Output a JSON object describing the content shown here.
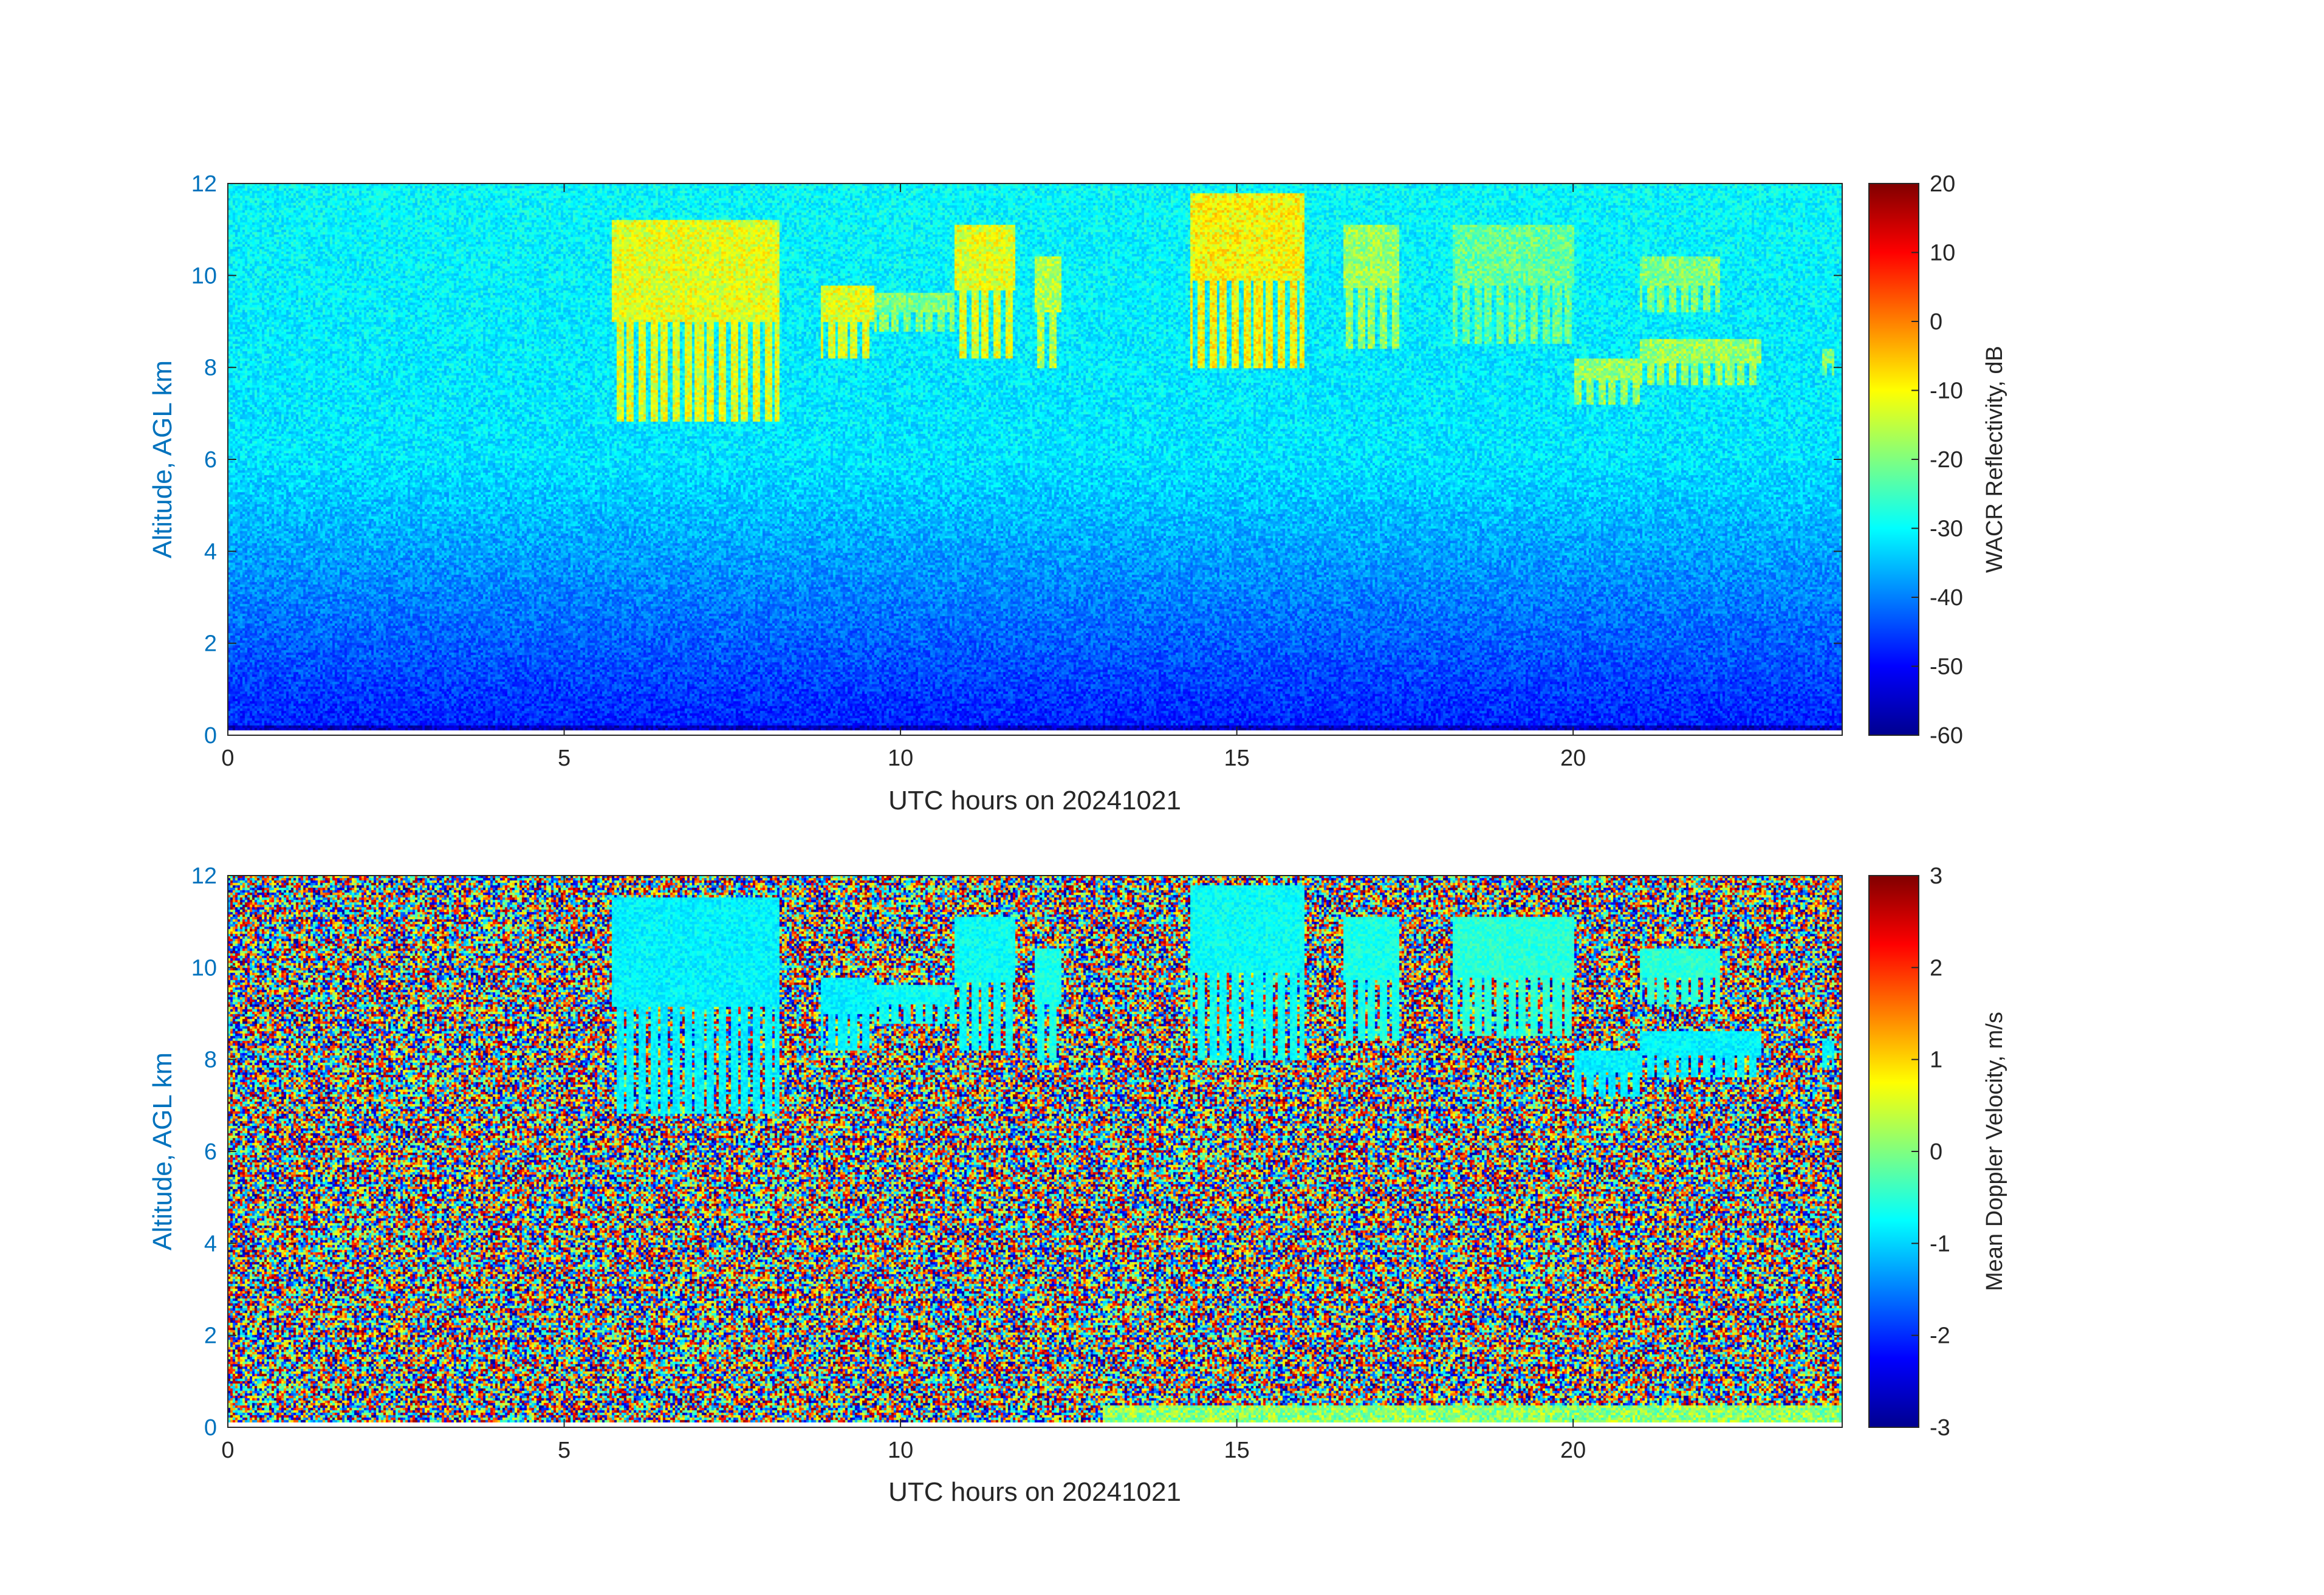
{
  "chart_data": [
    {
      "type": "heatmap",
      "xlabel": "UTC hours on 20241021",
      "ylabel": "Altitude, AGL km",
      "xlim": [
        0,
        24
      ],
      "ylim": [
        0,
        12
      ],
      "xticks": [
        0,
        5,
        10,
        15,
        20
      ],
      "yticks": [
        0,
        2,
        4,
        6,
        8,
        10,
        12
      ],
      "colormap": "jet",
      "colorbar": {
        "label": "WACR Reflectivity, dB",
        "range": [
          -60,
          20
        ],
        "ticks": [
          -60,
          -50,
          -40,
          -30,
          -20,
          -10,
          0,
          10,
          20
        ]
      },
      "clouds": [
        {
          "x0": 5.7,
          "x1": 8.2,
          "y0": 6.8,
          "y1": 11.2,
          "value": -12
        },
        {
          "x0": 8.8,
          "x1": 9.6,
          "y0": 8.2,
          "y1": 9.8,
          "value": -12
        },
        {
          "x0": 9.6,
          "x1": 10.8,
          "y0": 8.8,
          "y1": 9.6,
          "value": -20
        },
        {
          "x0": 10.8,
          "x1": 11.7,
          "y0": 8.2,
          "y1": 11.1,
          "value": -12
        },
        {
          "x0": 12.0,
          "x1": 12.4,
          "y0": 8.0,
          "y1": 10.4,
          "value": -16
        },
        {
          "x0": 14.3,
          "x1": 16.0,
          "y0": 8.0,
          "y1": 11.8,
          "value": -10
        },
        {
          "x0": 16.6,
          "x1": 17.4,
          "y0": 8.4,
          "y1": 11.1,
          "value": -18
        },
        {
          "x0": 18.2,
          "x1": 20.0,
          "y0": 8.5,
          "y1": 11.1,
          "value": -22
        },
        {
          "x0": 20.0,
          "x1": 21.0,
          "y0": 7.2,
          "y1": 8.2,
          "value": -18
        },
        {
          "x0": 21.0,
          "x1": 22.8,
          "y0": 7.6,
          "y1": 8.6,
          "value": -18
        },
        {
          "x0": 21.0,
          "x1": 22.2,
          "y0": 9.2,
          "y1": 10.4,
          "value": -20
        },
        {
          "x0": 23.7,
          "x1": 23.9,
          "y0": 7.8,
          "y1": 8.4,
          "value": -20
        }
      ]
    },
    {
      "type": "heatmap",
      "xlabel": "UTC hours on 20241021",
      "ylabel": "Altitude, AGL km",
      "xlim": [
        0,
        24
      ],
      "ylim": [
        0,
        12
      ],
      "xticks": [
        0,
        5,
        10,
        15,
        20
      ],
      "yticks": [
        0,
        2,
        4,
        6,
        8,
        10,
        12
      ],
      "colormap": "jet",
      "colorbar": {
        "label": "Mean Doppler Velocity, m/s",
        "range": [
          -3,
          3
        ],
        "ticks": [
          -3,
          -2,
          -1,
          0,
          1,
          2,
          3
        ]
      },
      "clouds": [
        {
          "x0": 5.7,
          "x1": 8.2,
          "y0": 6.8,
          "y1": 11.5,
          "value": -0.8
        },
        {
          "x0": 8.8,
          "x1": 9.6,
          "y0": 8.2,
          "y1": 9.8,
          "value": -0.8
        },
        {
          "x0": 9.6,
          "x1": 10.8,
          "y0": 8.8,
          "y1": 9.6,
          "value": -0.7
        },
        {
          "x0": 10.8,
          "x1": 11.7,
          "y0": 8.2,
          "y1": 11.1,
          "value": -0.7
        },
        {
          "x0": 12.0,
          "x1": 12.4,
          "y0": 8.0,
          "y1": 10.4,
          "value": -0.6
        },
        {
          "x0": 14.3,
          "x1": 16.0,
          "y0": 8.0,
          "y1": 11.8,
          "value": -0.7
        },
        {
          "x0": 16.6,
          "x1": 17.4,
          "y0": 8.4,
          "y1": 11.1,
          "value": -0.6
        },
        {
          "x0": 18.2,
          "x1": 20.0,
          "y0": 8.5,
          "y1": 11.1,
          "value": -0.5
        },
        {
          "x0": 20.0,
          "x1": 21.0,
          "y0": 7.2,
          "y1": 8.2,
          "value": -0.8
        },
        {
          "x0": 21.0,
          "x1": 22.8,
          "y0": 7.6,
          "y1": 8.6,
          "value": -0.8
        },
        {
          "x0": 21.0,
          "x1": 22.2,
          "y0": 9.2,
          "y1": 10.4,
          "value": -0.5
        },
        {
          "x0": 23.7,
          "x1": 23.9,
          "y0": 7.8,
          "y1": 8.4,
          "value": -0.8
        }
      ]
    }
  ]
}
